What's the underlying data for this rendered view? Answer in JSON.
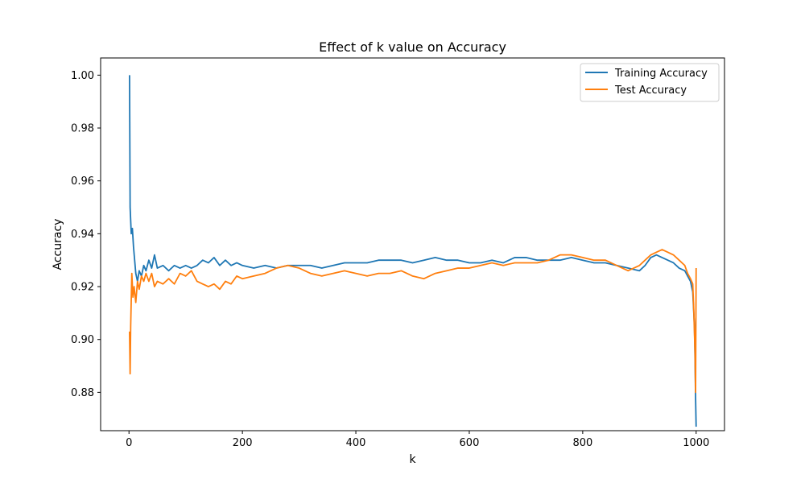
{
  "chart_data": {
    "type": "line",
    "title": "Effect of k value on Accuracy",
    "xlabel": "k",
    "ylabel": "Accuracy",
    "xlim": [
      -50,
      1050
    ],
    "ylim": [
      0.8655,
      1.0065
    ],
    "xticks": [
      0,
      200,
      400,
      600,
      800,
      1000
    ],
    "yticks": [
      0.88,
      0.9,
      0.92,
      0.94,
      0.96,
      0.98,
      1.0
    ],
    "ytick_labels": [
      "0.88",
      "0.90",
      "0.92",
      "0.94",
      "0.96",
      "0.98",
      "1.00"
    ],
    "legend_position": "top-right",
    "grid": false,
    "series": [
      {
        "name": "Training Accuracy",
        "color": "#1f77b4",
        "points": [
          [
            1,
            1.0
          ],
          [
            2,
            0.95
          ],
          [
            4,
            0.94
          ],
          [
            6,
            0.942
          ],
          [
            8,
            0.935
          ],
          [
            10,
            0.93
          ],
          [
            12,
            0.925
          ],
          [
            15,
            0.922
          ],
          [
            18,
            0.926
          ],
          [
            22,
            0.924
          ],
          [
            26,
            0.928
          ],
          [
            30,
            0.926
          ],
          [
            35,
            0.93
          ],
          [
            40,
            0.927
          ],
          [
            45,
            0.932
          ],
          [
            50,
            0.927
          ],
          [
            60,
            0.928
          ],
          [
            70,
            0.926
          ],
          [
            80,
            0.928
          ],
          [
            90,
            0.927
          ],
          [
            100,
            0.928
          ],
          [
            110,
            0.927
          ],
          [
            120,
            0.928
          ],
          [
            130,
            0.93
          ],
          [
            140,
            0.929
          ],
          [
            150,
            0.931
          ],
          [
            160,
            0.928
          ],
          [
            170,
            0.93
          ],
          [
            180,
            0.928
          ],
          [
            190,
            0.929
          ],
          [
            200,
            0.928
          ],
          [
            220,
            0.927
          ],
          [
            240,
            0.928
          ],
          [
            260,
            0.927
          ],
          [
            280,
            0.928
          ],
          [
            300,
            0.928
          ],
          [
            320,
            0.928
          ],
          [
            340,
            0.927
          ],
          [
            360,
            0.928
          ],
          [
            380,
            0.929
          ],
          [
            400,
            0.929
          ],
          [
            420,
            0.929
          ],
          [
            440,
            0.93
          ],
          [
            460,
            0.93
          ],
          [
            480,
            0.93
          ],
          [
            500,
            0.929
          ],
          [
            520,
            0.93
          ],
          [
            540,
            0.931
          ],
          [
            560,
            0.93
          ],
          [
            580,
            0.93
          ],
          [
            600,
            0.929
          ],
          [
            620,
            0.929
          ],
          [
            640,
            0.93
          ],
          [
            660,
            0.929
          ],
          [
            680,
            0.931
          ],
          [
            700,
            0.931
          ],
          [
            720,
            0.93
          ],
          [
            740,
            0.93
          ],
          [
            760,
            0.93
          ],
          [
            780,
            0.931
          ],
          [
            800,
            0.93
          ],
          [
            820,
            0.929
          ],
          [
            840,
            0.929
          ],
          [
            860,
            0.928
          ],
          [
            880,
            0.927
          ],
          [
            900,
            0.926
          ],
          [
            910,
            0.928
          ],
          [
            920,
            0.931
          ],
          [
            930,
            0.932
          ],
          [
            940,
            0.931
          ],
          [
            950,
            0.93
          ],
          [
            960,
            0.929
          ],
          [
            970,
            0.927
          ],
          [
            980,
            0.926
          ],
          [
            985,
            0.924
          ],
          [
            990,
            0.922
          ],
          [
            994,
            0.918
          ],
          [
            997,
            0.905
          ],
          [
            998,
            0.893
          ],
          [
            999,
            0.878
          ],
          [
            1000,
            0.867
          ]
        ]
      },
      {
        "name": "Test Accuracy",
        "color": "#ff7f0e",
        "points": [
          [
            1,
            0.903
          ],
          [
            2,
            0.887
          ],
          [
            3,
            0.905
          ],
          [
            5,
            0.925
          ],
          [
            7,
            0.916
          ],
          [
            9,
            0.92
          ],
          [
            12,
            0.914
          ],
          [
            15,
            0.922
          ],
          [
            18,
            0.919
          ],
          [
            22,
            0.924
          ],
          [
            26,
            0.922
          ],
          [
            30,
            0.925
          ],
          [
            35,
            0.922
          ],
          [
            40,
            0.925
          ],
          [
            45,
            0.92
          ],
          [
            50,
            0.922
          ],
          [
            60,
            0.921
          ],
          [
            70,
            0.923
          ],
          [
            80,
            0.921
          ],
          [
            90,
            0.925
          ],
          [
            100,
            0.924
          ],
          [
            110,
            0.926
          ],
          [
            120,
            0.922
          ],
          [
            130,
            0.921
          ],
          [
            140,
            0.92
          ],
          [
            150,
            0.921
          ],
          [
            160,
            0.919
          ],
          [
            170,
            0.922
          ],
          [
            180,
            0.921
          ],
          [
            190,
            0.924
          ],
          [
            200,
            0.923
          ],
          [
            220,
            0.924
          ],
          [
            240,
            0.925
          ],
          [
            260,
            0.927
          ],
          [
            280,
            0.928
          ],
          [
            300,
            0.927
          ],
          [
            320,
            0.925
          ],
          [
            340,
            0.924
          ],
          [
            360,
            0.925
          ],
          [
            380,
            0.926
          ],
          [
            400,
            0.925
          ],
          [
            420,
            0.924
          ],
          [
            440,
            0.925
          ],
          [
            460,
            0.925
          ],
          [
            480,
            0.926
          ],
          [
            500,
            0.924
          ],
          [
            520,
            0.923
          ],
          [
            540,
            0.925
          ],
          [
            560,
            0.926
          ],
          [
            580,
            0.927
          ],
          [
            600,
            0.927
          ],
          [
            620,
            0.928
          ],
          [
            640,
            0.929
          ],
          [
            660,
            0.928
          ],
          [
            680,
            0.929
          ],
          [
            700,
            0.929
          ],
          [
            720,
            0.929
          ],
          [
            740,
            0.93
          ],
          [
            760,
            0.932
          ],
          [
            780,
            0.932
          ],
          [
            800,
            0.931
          ],
          [
            820,
            0.93
          ],
          [
            840,
            0.93
          ],
          [
            860,
            0.928
          ],
          [
            880,
            0.926
          ],
          [
            900,
            0.928
          ],
          [
            910,
            0.93
          ],
          [
            920,
            0.932
          ],
          [
            930,
            0.933
          ],
          [
            940,
            0.934
          ],
          [
            950,
            0.933
          ],
          [
            960,
            0.932
          ],
          [
            970,
            0.93
          ],
          [
            980,
            0.928
          ],
          [
            985,
            0.925
          ],
          [
            990,
            0.923
          ],
          [
            994,
            0.921
          ],
          [
            996,
            0.91
          ],
          [
            998,
            0.895
          ],
          [
            999,
            0.88
          ],
          [
            1000,
            0.927
          ]
        ]
      }
    ]
  }
}
